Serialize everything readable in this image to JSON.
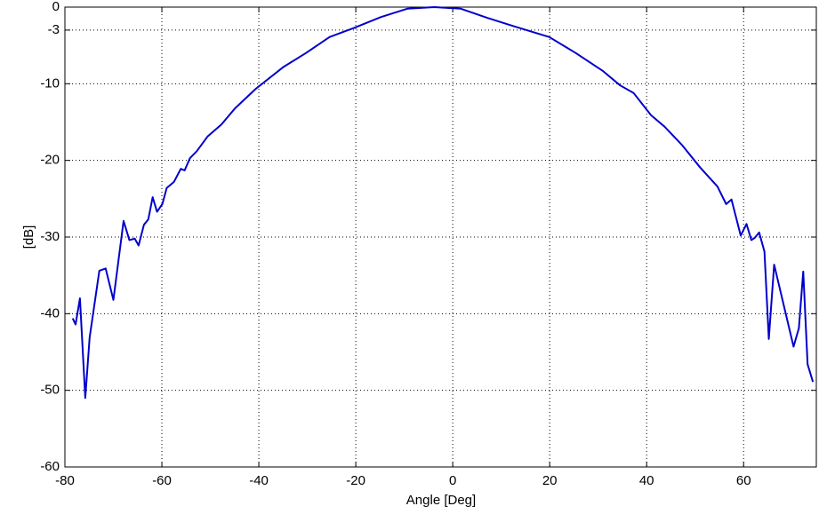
{
  "chart_data": {
    "type": "line",
    "x_label": "Angle [Deg]",
    "y_label": "[dB]",
    "x": [
      -78.4,
      -77.8,
      -76.9,
      -75.8,
      -74.9,
      -72.9,
      -71.6,
      -70.0,
      -67.9,
      -66.7,
      -65.6,
      -64.8,
      -63.7,
      -62.8,
      -61.9,
      -61.0,
      -59.9,
      -59.0,
      -57.5,
      -56.1,
      -55.3,
      -54.2,
      -52.8,
      -50.6,
      -47.7,
      -44.9,
      -40.7,
      -34.9,
      -30.3,
      -25.4,
      -20.3,
      -14.8,
      -9.3,
      -3.8,
      1.6,
      7.1,
      12.6,
      19.9,
      25.4,
      30.9,
      34.5,
      37.3,
      40.9,
      43.7,
      47.3,
      51.0,
      54.6,
      56.4,
      57.5,
      59.4,
      60.6,
      61.6,
      62.3,
      63.2,
      64.3,
      65.2,
      66.3,
      70.3,
      71.4,
      72.3,
      73.2,
      74.3
    ],
    "series": [
      {
        "color": "#0000cc",
        "values": [
          -40.6,
          -41.4,
          -38.0,
          -51.0,
          -43.1,
          -34.4,
          -34.1,
          -38.2,
          -27.9,
          -30.4,
          -30.2,
          -31.1,
          -28.4,
          -27.7,
          -24.8,
          -26.7,
          -25.7,
          -23.6,
          -22.8,
          -21.1,
          -21.3,
          -19.7,
          -18.8,
          -16.9,
          -15.3,
          -13.2,
          -10.7,
          -7.8,
          -6.0,
          -3.9,
          -2.7,
          -1.3,
          -0.2,
          0,
          -0.2,
          -1.4,
          -2.5,
          -3.9,
          -6.0,
          -8.3,
          -10.2,
          -11.2,
          -14.1,
          -15.6,
          -18.0,
          -20.9,
          -23.4,
          -25.7,
          -25.1,
          -29.8,
          -28.3,
          -30.4,
          -30.1,
          -29.4,
          -31.9,
          -43.3,
          -33.6,
          -44.3,
          -41.9,
          -34.5,
          -46.6,
          -48.9
        ]
      }
    ],
    "xlim": [
      -80,
      75
    ],
    "xticks": [
      -80,
      -60,
      -40,
      -20,
      0,
      20,
      40,
      60
    ],
    "ylim": [
      -60,
      0
    ],
    "yticks": [
      -60,
      -50,
      -40,
      -30,
      -20,
      -10,
      -3,
      0
    ],
    "grid": true
  }
}
